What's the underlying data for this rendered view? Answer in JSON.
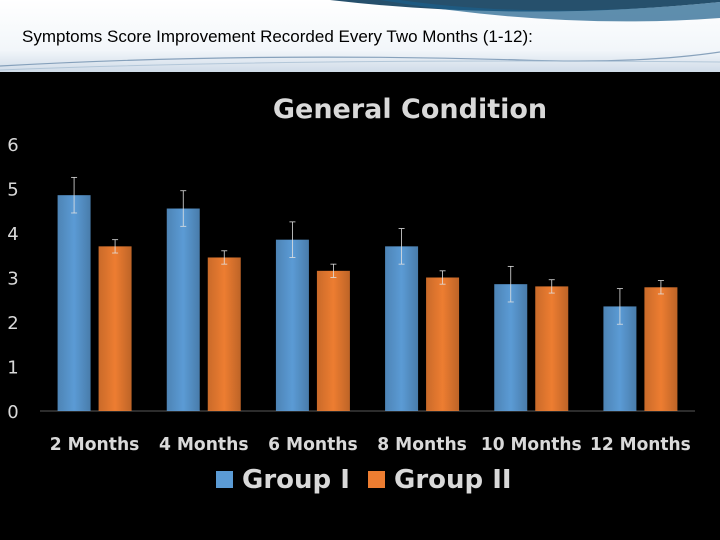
{
  "slide": {
    "title": "Symptoms Score Improvement Recorded Every Two Months (1-12):"
  },
  "colors": {
    "background": "#000000",
    "group1": "#5b9bd5",
    "group2": "#ed7d31",
    "text": "#d9d9d9",
    "header_accent": "#0e3d5c"
  },
  "chart_data": {
    "type": "bar",
    "title": "General Condition",
    "categories": [
      "2 Months",
      "4 Months",
      "6 Months",
      "8 Months",
      "10 Months",
      "12 Months"
    ],
    "series": [
      {
        "name": "Group I",
        "values": [
          4.85,
          4.55,
          3.85,
          3.7,
          2.85,
          2.35
        ],
        "error": [
          0.4,
          0.4,
          0.4,
          0.4,
          0.4,
          0.4
        ]
      },
      {
        "name": "Group II",
        "values": [
          3.7,
          3.45,
          3.15,
          3.0,
          2.8,
          2.78
        ],
        "error": [
          0.15,
          0.15,
          0.15,
          0.15,
          0.15,
          0.15
        ]
      }
    ],
    "ylim": [
      0,
      6
    ],
    "yticks": [
      0,
      1,
      2,
      3,
      4,
      5,
      6
    ],
    "xlabel": "",
    "ylabel": "",
    "grid": false,
    "legend": "bottom"
  }
}
